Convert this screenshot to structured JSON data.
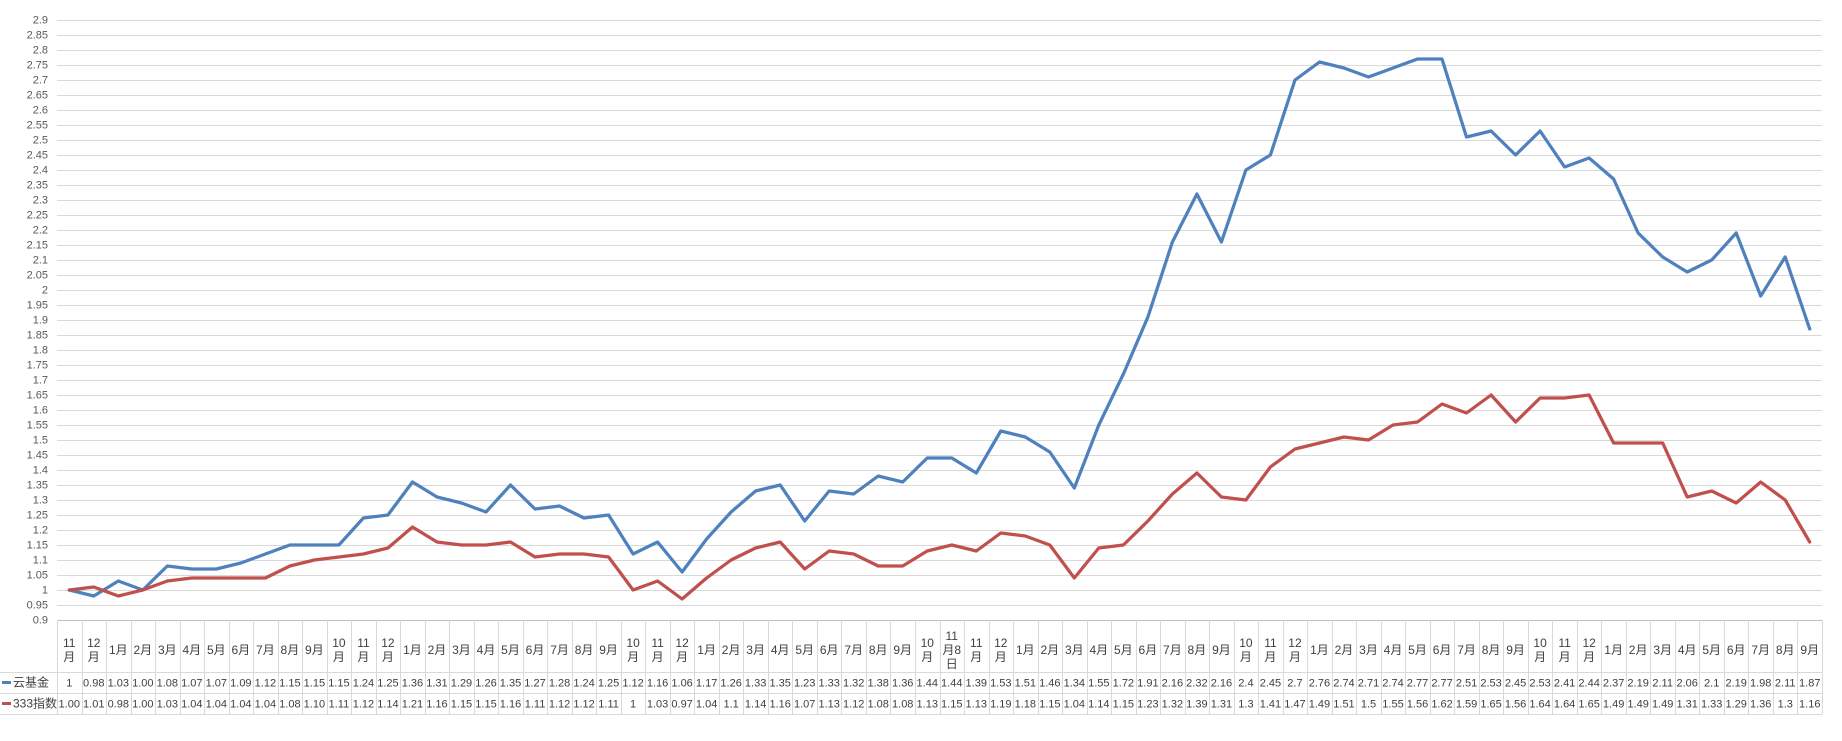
{
  "chart_data": {
    "type": "line",
    "title": "",
    "xlabel": "",
    "ylabel": "",
    "ylim": [
      0.9,
      2.9
    ],
    "ytick_step": 0.05,
    "grid": true,
    "legend_position": "table-row-headers-left",
    "categories": [
      "11月",
      "12月",
      "1月",
      "2月",
      "3月",
      "4月",
      "5月",
      "6月",
      "7月",
      "8月",
      "9月",
      "10月",
      "11月",
      "12月",
      "1月",
      "2月",
      "3月",
      "4月",
      "5月",
      "6月",
      "7月",
      "8月",
      "9月",
      "10月",
      "11月",
      "12月",
      "1月",
      "2月",
      "3月",
      "4月",
      "5月",
      "6月",
      "7月",
      "8月",
      "9月",
      "10月",
      "11月8日",
      "11月",
      "12月",
      "1月",
      "2月",
      "3月",
      "4月",
      "5月",
      "6月",
      "7月",
      "8月",
      "9月",
      "10月",
      "11月",
      "12月",
      "1月",
      "2月",
      "3月",
      "4月",
      "5月",
      "6月",
      "7月",
      "8月",
      "9月",
      "10月",
      "11月",
      "12月",
      "1月",
      "2月",
      "3月",
      "4月",
      "5月",
      "6月",
      "7月",
      "8月",
      "9月"
    ],
    "series": [
      {
        "name": "云基金",
        "color": "#4F81BD",
        "values": [
          "1",
          "0.98",
          "1.03",
          "1.00",
          "1.08",
          "1.07",
          "1.07",
          "1.09",
          "1.12",
          "1.15",
          "1.15",
          "1.15",
          "1.24",
          "1.25",
          "1.36",
          "1.31",
          "1.29",
          "1.26",
          "1.35",
          "1.27",
          "1.28",
          "1.24",
          "1.25",
          "1.12",
          "1.16",
          "1.06",
          "1.17",
          "1.26",
          "1.33",
          "1.35",
          "1.23",
          "1.33",
          "1.32",
          "1.38",
          "1.36",
          "1.44",
          "1.44",
          "1.39",
          "1.53",
          "1.51",
          "1.46",
          "1.34",
          "1.55",
          "1.72",
          "1.91",
          "2.16",
          "2.32",
          "2.16",
          "2.4",
          "2.45",
          "2.7",
          "2.76",
          "2.74",
          "2.71",
          "2.74",
          "2.77",
          "2.77",
          "2.51",
          "2.53",
          "2.45",
          "2.53",
          "2.41",
          "2.44",
          "2.37",
          "2.19",
          "2.11",
          "2.06",
          "2.1",
          "2.19",
          "1.98",
          "2.11",
          "1.87"
        ]
      },
      {
        "name": "333指数",
        "color": "#C0504D",
        "values": [
          "1.00",
          "1.01",
          "0.98",
          "1.00",
          "1.03",
          "1.04",
          "1.04",
          "1.04",
          "1.04",
          "1.08",
          "1.10",
          "1.11",
          "1.12",
          "1.14",
          "1.21",
          "1.16",
          "1.15",
          "1.15",
          "1.16",
          "1.11",
          "1.12",
          "1.12",
          "1.11",
          "1",
          "1.03",
          "0.97",
          "1.04",
          "1.1",
          "1.14",
          "1.16",
          "1.07",
          "1.13",
          "1.12",
          "1.08",
          "1.08",
          "1.13",
          "1.15",
          "1.13",
          "1.19",
          "1.18",
          "1.15",
          "1.04",
          "1.14",
          "1.15",
          "1.23",
          "1.32",
          "1.39",
          "1.31",
          "1.3",
          "1.41",
          "1.47",
          "1.49",
          "1.51",
          "1.5",
          "1.55",
          "1.56",
          "1.62",
          "1.59",
          "1.65",
          "1.56",
          "1.64",
          "1.64",
          "1.65",
          "1.49",
          "1.49",
          "1.49",
          "1.31",
          "1.33",
          "1.29",
          "1.36",
          "1.3",
          "1.16"
        ]
      }
    ]
  },
  "colors": {
    "background": "#FFFFFF",
    "grid": "#D9D9D9",
    "axis_line": "#BFBFBF",
    "axis_text": "#595959",
    "table_border": "#D9D9D9",
    "table_text": "#404040"
  }
}
